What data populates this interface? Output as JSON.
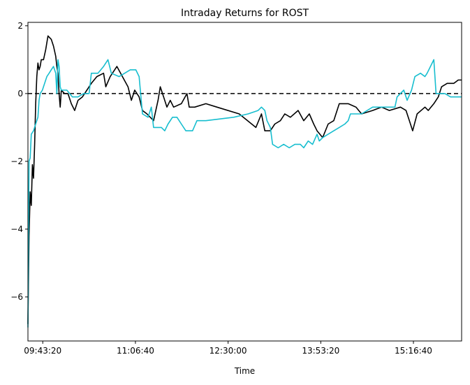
{
  "chart_data": {
    "type": "line",
    "title": "Intraday Returns for ROST",
    "xlabel": "Time",
    "ylabel": "",
    "xlim": [
      "09:30:00",
      "16:00:00"
    ],
    "ylim": [
      -7.3,
      2.1
    ],
    "x_ticks": [
      "09:43:20",
      "11:06:40",
      "12:30:00",
      "13:53:20",
      "15:16:40"
    ],
    "y_ticks": [
      -6,
      -4,
      -2,
      0,
      2
    ],
    "grid": false,
    "legend": "none",
    "reference_line": {
      "y": 0,
      "style": "dashed",
      "color": "#000000"
    },
    "series": [
      {
        "color": "#000000",
        "points": [
          [
            "09:30:00",
            -6.8
          ],
          [
            "09:31:00",
            -4.2
          ],
          [
            "09:32:00",
            -2.9
          ],
          [
            "09:33:00",
            -3.3
          ],
          [
            "09:34:00",
            -2.1
          ],
          [
            "09:35:00",
            -2.5
          ],
          [
            "09:36:00",
            -1.5
          ],
          [
            "09:37:00",
            -0.3
          ],
          [
            "09:38:00",
            0.5
          ],
          [
            "09:39:00",
            0.9
          ],
          [
            "09:40:00",
            0.7
          ],
          [
            "09:41:00",
            0.8
          ],
          [
            "09:42:00",
            1.0
          ],
          [
            "09:44:00",
            1.0
          ],
          [
            "09:46:00",
            1.3
          ],
          [
            "09:48:00",
            1.7
          ],
          [
            "09:51:00",
            1.6
          ],
          [
            "09:53:00",
            1.4
          ],
          [
            "09:55:00",
            1.1
          ],
          [
            "09:56:00",
            0.8
          ],
          [
            "09:57:00",
            0.6
          ],
          [
            "09:58:00",
            0.0
          ],
          [
            "09:59:00",
            -0.4
          ],
          [
            "10:00:00",
            0.1
          ],
          [
            "10:03:00",
            0.0
          ],
          [
            "10:06:00",
            0.0
          ],
          [
            "10:09:00",
            -0.3
          ],
          [
            "10:12:00",
            -0.5
          ],
          [
            "10:15:00",
            -0.2
          ],
          [
            "10:19:00",
            -0.1
          ],
          [
            "10:23:00",
            0.1
          ],
          [
            "10:27:00",
            0.3
          ],
          [
            "10:32:00",
            0.5
          ],
          [
            "10:38:00",
            0.6
          ],
          [
            "10:40:00",
            0.2
          ],
          [
            "10:44:00",
            0.5
          ],
          [
            "10:50:00",
            0.8
          ],
          [
            "10:55:00",
            0.5
          ],
          [
            "11:00:00",
            0.2
          ],
          [
            "11:03:00",
            -0.2
          ],
          [
            "11:06:00",
            0.1
          ],
          [
            "11:10:00",
            -0.1
          ],
          [
            "11:13:00",
            -0.5
          ],
          [
            "11:17:00",
            -0.6
          ],
          [
            "11:23:00",
            -0.8
          ],
          [
            "11:27:00",
            -0.2
          ],
          [
            "11:29:00",
            0.2
          ],
          [
            "11:32:00",
            -0.1
          ],
          [
            "11:35:00",
            -0.4
          ],
          [
            "11:38:00",
            -0.2
          ],
          [
            "11:41:00",
            -0.4
          ],
          [
            "11:48:00",
            -0.3
          ],
          [
            "11:53:00",
            0.0
          ],
          [
            "11:55:00",
            -0.4
          ],
          [
            "12:00:00",
            -0.4
          ],
          [
            "12:10:00",
            -0.3
          ],
          [
            "12:20:00",
            -0.4
          ],
          [
            "12:40:00",
            -0.6
          ],
          [
            "12:55:00",
            -1.0
          ],
          [
            "13:00:00",
            -0.6
          ],
          [
            "13:03:00",
            -1.1
          ],
          [
            "13:08:00",
            -1.1
          ],
          [
            "13:12:00",
            -0.9
          ],
          [
            "13:17:00",
            -0.8
          ],
          [
            "13:21:00",
            -0.6
          ],
          [
            "13:26:00",
            -0.7
          ],
          [
            "13:33:00",
            -0.5
          ],
          [
            "13:38:00",
            -0.8
          ],
          [
            "13:43:00",
            -0.6
          ],
          [
            "13:47:00",
            -0.9
          ],
          [
            "13:50:00",
            -1.1
          ],
          [
            "13:55:00",
            -1.3
          ],
          [
            "14:00:00",
            -0.9
          ],
          [
            "14:05:00",
            -0.8
          ],
          [
            "14:10:00",
            -0.3
          ],
          [
            "14:18:00",
            -0.3
          ],
          [
            "14:25:00",
            -0.4
          ],
          [
            "14:30:00",
            -0.6
          ],
          [
            "14:40:00",
            -0.5
          ],
          [
            "14:48:00",
            -0.4
          ],
          [
            "14:55:00",
            -0.5
          ],
          [
            "15:05:00",
            -0.4
          ],
          [
            "15:10:00",
            -0.5
          ],
          [
            "15:13:00",
            -0.8
          ],
          [
            "15:16:00",
            -1.1
          ],
          [
            "15:20:00",
            -0.6
          ],
          [
            "15:27:00",
            -0.4
          ],
          [
            "15:30:00",
            -0.5
          ],
          [
            "15:35:00",
            -0.3
          ],
          [
            "15:39:00",
            -0.1
          ],
          [
            "15:42:00",
            0.2
          ],
          [
            "15:47:00",
            0.3
          ],
          [
            "15:53:00",
            0.3
          ],
          [
            "15:57:00",
            0.4
          ],
          [
            "16:00:00",
            0.4
          ]
        ]
      },
      {
        "color": "#17becf",
        "points": [
          [
            "09:30:00",
            -6.9
          ],
          [
            "09:31:00",
            -2.0
          ],
          [
            "09:32:00",
            -1.9
          ],
          [
            "09:33:00",
            -1.2
          ],
          [
            "09:35:00",
            -1.1
          ],
          [
            "09:37:00",
            -0.9
          ],
          [
            "09:39:00",
            -0.7
          ],
          [
            "09:40:00",
            -0.2
          ],
          [
            "09:41:00",
            0.0
          ],
          [
            "09:43:00",
            0.1
          ],
          [
            "09:45:00",
            0.3
          ],
          [
            "09:47:00",
            0.5
          ],
          [
            "09:49:00",
            0.6
          ],
          [
            "09:51:00",
            0.7
          ],
          [
            "09:53:00",
            0.8
          ],
          [
            "09:55:00",
            0.6
          ],
          [
            "09:56:00",
            0.0
          ],
          [
            "09:57:00",
            1.0
          ],
          [
            "09:58:00",
            0.8
          ],
          [
            "09:59:00",
            0.2
          ],
          [
            "10:00:00",
            0.1
          ],
          [
            "10:05:00",
            0.1
          ],
          [
            "10:10:00",
            -0.1
          ],
          [
            "10:15:00",
            -0.1
          ],
          [
            "10:20:00",
            0.0
          ],
          [
            "10:25:00",
            0.0
          ],
          [
            "10:27:00",
            0.6
          ],
          [
            "10:33:00",
            0.6
          ],
          [
            "10:38:00",
            0.8
          ],
          [
            "10:42:00",
            1.0
          ],
          [
            "10:45:00",
            0.6
          ],
          [
            "10:52:00",
            0.5
          ],
          [
            "10:57:00",
            0.6
          ],
          [
            "11:02:00",
            0.7
          ],
          [
            "11:07:00",
            0.7
          ],
          [
            "11:10:00",
            0.5
          ],
          [
            "11:13:00",
            -0.6
          ],
          [
            "11:18:00",
            -0.7
          ],
          [
            "11:21:00",
            -0.4
          ],
          [
            "11:23:00",
            -1.0
          ],
          [
            "11:30:00",
            -1.0
          ],
          [
            "11:33:00",
            -1.1
          ],
          [
            "11:36:00",
            -0.9
          ],
          [
            "11:40:00",
            -0.7
          ],
          [
            "11:44:00",
            -0.7
          ],
          [
            "11:48:00",
            -0.9
          ],
          [
            "11:52:00",
            -1.1
          ],
          [
            "11:58:00",
            -1.1
          ],
          [
            "12:02:00",
            -0.8
          ],
          [
            "12:10:00",
            -0.8
          ],
          [
            "12:35:00",
            -0.7
          ],
          [
            "12:48:00",
            -0.6
          ],
          [
            "12:57:00",
            -0.5
          ],
          [
            "13:00:00",
            -0.4
          ],
          [
            "13:03:00",
            -0.5
          ],
          [
            "13:05:00",
            -0.8
          ],
          [
            "13:08:00",
            -1.0
          ],
          [
            "13:10:00",
            -1.5
          ],
          [
            "13:15:00",
            -1.6
          ],
          [
            "13:20:00",
            -1.5
          ],
          [
            "13:25:00",
            -1.6
          ],
          [
            "13:30:00",
            -1.5
          ],
          [
            "13:33:00",
            -1.5
          ],
          [
            "13:35:00",
            -1.5
          ],
          [
            "13:38:00",
            -1.6
          ],
          [
            "13:42:00",
            -1.4
          ],
          [
            "13:46:00",
            -1.5
          ],
          [
            "13:50:00",
            -1.2
          ],
          [
            "13:52:00",
            -1.4
          ],
          [
            "13:55:00",
            -1.3
          ],
          [
            "14:00:00",
            -1.2
          ],
          [
            "14:05:00",
            -1.1
          ],
          [
            "14:10:00",
            -1.0
          ],
          [
            "14:15:00",
            -0.9
          ],
          [
            "14:18:00",
            -0.8
          ],
          [
            "14:20:00",
            -0.6
          ],
          [
            "14:30:00",
            -0.6
          ],
          [
            "14:40:00",
            -0.4
          ],
          [
            "14:55:00",
            -0.4
          ],
          [
            "15:00:00",
            -0.4
          ],
          [
            "15:02:00",
            -0.1
          ],
          [
            "15:08:00",
            0.1
          ],
          [
            "15:11:00",
            -0.2
          ],
          [
            "15:15:00",
            0.1
          ],
          [
            "15:18:00",
            0.5
          ],
          [
            "15:23:00",
            0.6
          ],
          [
            "15:27:00",
            0.5
          ],
          [
            "15:29:00",
            0.6
          ],
          [
            "15:32:00",
            0.8
          ],
          [
            "15:35:00",
            1.0
          ],
          [
            "15:37:00",
            0.0
          ],
          [
            "15:45:00",
            0.0
          ],
          [
            "15:50:00",
            -0.1
          ],
          [
            "16:00:00",
            -0.1
          ]
        ]
      }
    ]
  }
}
